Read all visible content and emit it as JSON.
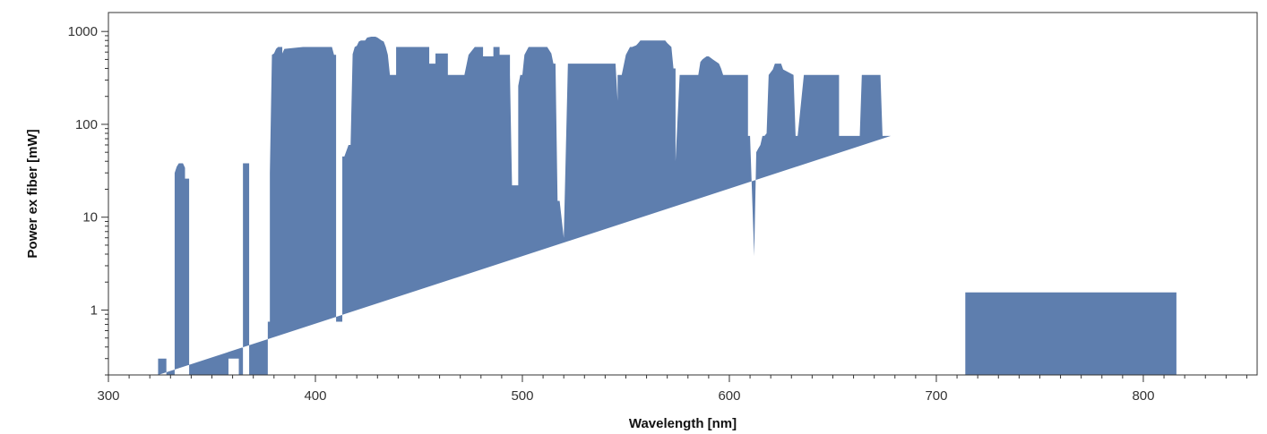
{
  "chart_data": {
    "type": "area",
    "xlabel": "Wavelength [nm]",
    "ylabel": "Power ex fiber [mW]",
    "xlim": [
      300,
      855
    ],
    "ylim": [
      0.2,
      1600
    ],
    "yscale": "log",
    "grid": false,
    "legend": "none",
    "x_ticks": [
      300,
      400,
      500,
      600,
      700,
      800
    ],
    "y_ticks": [
      1,
      10,
      100,
      1000
    ],
    "x_minor_step": 10,
    "colors": {
      "fill": "#5e7eae",
      "axis": "#333333"
    },
    "series": [
      {
        "x": [
          324,
          324,
          328,
          328,
          332,
          332,
          333,
          334,
          336,
          337,
          337,
          339,
          339,
          358,
          358,
          363,
          363,
          365,
          365,
          368,
          368,
          377,
          377,
          378,
          378,
          379,
          380,
          381,
          382,
          384,
          384,
          385,
          394,
          395,
          396,
          397,
          398,
          399,
          400,
          405,
          406,
          407,
          408,
          409,
          410,
          410,
          410,
          412,
          413,
          413,
          414,
          416,
          417,
          418,
          419,
          420,
          421,
          422,
          424,
          425,
          427,
          429,
          430,
          432,
          433,
          434,
          435,
          436,
          437,
          437,
          439,
          439,
          441,
          441,
          455,
          455,
          458,
          458,
          464,
          464,
          472,
          472,
          474,
          477,
          481,
          481,
          486,
          486,
          489,
          489,
          494,
          494,
          495,
          496,
          498,
          498,
          499,
          500,
          501,
          503,
          512,
          512,
          514,
          515,
          516,
          517,
          518,
          520,
          520,
          520,
          522,
          545,
          546,
          546,
          548,
          550,
          552,
          553,
          555,
          556,
          557,
          559,
          563,
          569,
          570,
          572,
          573,
          574,
          574,
          574,
          576,
          585,
          586,
          587,
          588,
          589,
          590,
          591,
          592,
          595,
          596,
          597,
          609,
          609,
          610,
          612,
          612,
          613,
          614,
          615,
          616,
          617,
          618,
          619,
          621,
          622,
          623,
          625,
          626,
          631,
          632,
          633,
          636,
          637,
          637,
          639,
          653,
          653,
          659,
          659,
          663,
          664,
          666,
          667,
          673,
          674,
          678,
          678
        ],
        "y": [
          0.2,
          0.3,
          0.3,
          0.2,
          0.2,
          30,
          35,
          38,
          38,
          34,
          26,
          26,
          0.2,
          0.2,
          0.3,
          0.3,
          0.2,
          0.2,
          38,
          38,
          0.2,
          0.2,
          0.75,
          0.75,
          30,
          560,
          580,
          650,
          680,
          680,
          580,
          650,
          680,
          680,
          680,
          680,
          680,
          680,
          680,
          680,
          680,
          680,
          680,
          560,
          560,
          0.75,
          0.75,
          0.75,
          0.75,
          45,
          45,
          60,
          60,
          570,
          680,
          700,
          780,
          800,
          800,
          860,
          880,
          880,
          860,
          800,
          780,
          680,
          560,
          340,
          340,
          340,
          340,
          680,
          680,
          680,
          680,
          450,
          450,
          580,
          580,
          340,
          340,
          340,
          560,
          680,
          680,
          540,
          540,
          680,
          680,
          560,
          560,
          340,
          22,
          22,
          22,
          260,
          340,
          340,
          560,
          680,
          680,
          680,
          580,
          450,
          450,
          15,
          15,
          6,
          6,
          6,
          450,
          450,
          180,
          340,
          340,
          560,
          680,
          680,
          710,
          750,
          800,
          800,
          800,
          800,
          750,
          680,
          400,
          400,
          40,
          40,
          340,
          340,
          470,
          500,
          520,
          540,
          540,
          520,
          500,
          450,
          400,
          340,
          340,
          75,
          75,
          3.8,
          3.8,
          50,
          55,
          60,
          75,
          75,
          80,
          340,
          390,
          450,
          450,
          450,
          390,
          340,
          75,
          75,
          340,
          340,
          340,
          340,
          340,
          75,
          75,
          75,
          75,
          340,
          340,
          340,
          340,
          75,
          75,
          75
        ]
      },
      {
        "x": [
          714,
          714,
          816,
          816
        ],
        "y": [
          0.2,
          1.55,
          1.55,
          0.2
        ]
      }
    ]
  }
}
